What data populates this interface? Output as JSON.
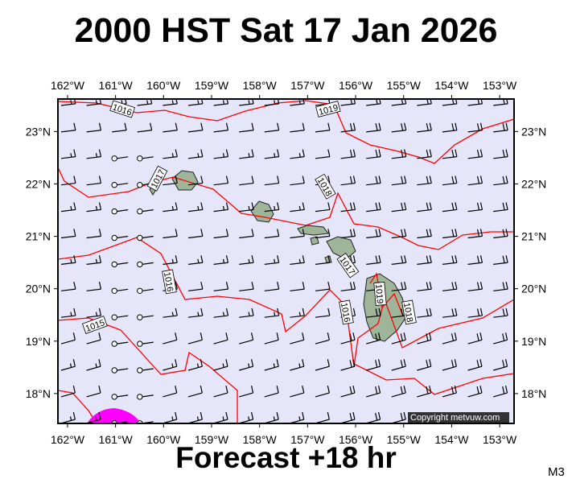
{
  "title": "2000 HST Sat 17 Jan 2026",
  "footer": "Forecast +18 hr",
  "code": "M3",
  "copyright": "Copyright metvuw.com",
  "colors": {
    "ocean": "#e6e6fa",
    "isobar": "#ff0000",
    "land": "#8fa58a",
    "precip": "#ff00ff",
    "barb": "#000000"
  },
  "map": {
    "lon_range": [
      -162.2,
      -152.7
    ],
    "lat_range": [
      17.43,
      23.62
    ],
    "lon_ticks": [
      "162°W",
      "161°W",
      "160°W",
      "159°W",
      "158°W",
      "157°W",
      "156°W",
      "155°W",
      "154°W",
      "153°W"
    ],
    "lat_ticks": [
      "23°N",
      "22°N",
      "21°N",
      "20°N",
      "19°N",
      "18°N"
    ]
  },
  "isobar_labels": [
    "1016",
    "1019",
    "1017",
    "1018",
    "1017",
    "1016",
    "1015",
    "1016",
    "1019",
    "1018"
  ],
  "wind_barbs": {
    "note_pattern": "easterly/northeasterly trade winds, 10-20 kt, calm circles near 161W-160W",
    "calm_lon_range": [
      -161.5,
      -160.2
    ]
  }
}
